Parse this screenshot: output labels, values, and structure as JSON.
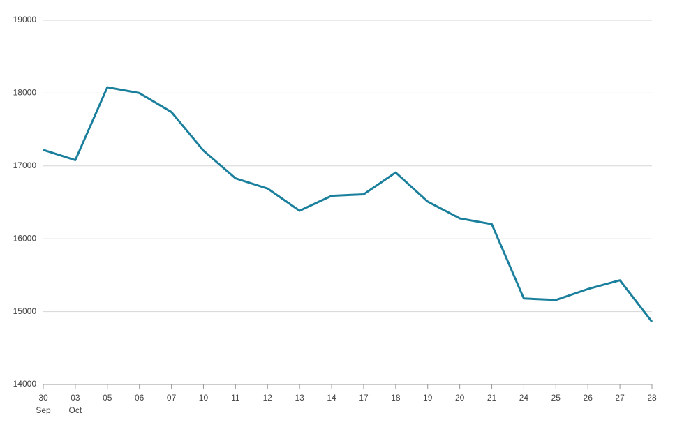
{
  "chart_data": {
    "type": "line",
    "categories": [
      "30",
      "03",
      "05",
      "06",
      "07",
      "10",
      "11",
      "12",
      "13",
      "14",
      "17",
      "18",
      "19",
      "20",
      "21",
      "24",
      "25",
      "26",
      "27",
      "28"
    ],
    "x_sublabels": [
      "Sep",
      "Oct",
      null,
      null,
      null,
      null,
      null,
      null,
      null,
      null,
      null,
      null,
      null,
      null,
      null,
      null,
      null,
      null,
      null,
      null
    ],
    "values": [
      17220,
      17080,
      18080,
      18000,
      17740,
      17210,
      16830,
      16690,
      16385,
      16590,
      16610,
      16910,
      16510,
      16280,
      16200,
      15180,
      15160,
      15310,
      15430,
      14860
    ],
    "color": "#1a7f9c",
    "ylim": [
      14000,
      19000
    ],
    "yticks": [
      14000,
      15000,
      16000,
      17000,
      18000,
      19000
    ],
    "grid": true
  }
}
